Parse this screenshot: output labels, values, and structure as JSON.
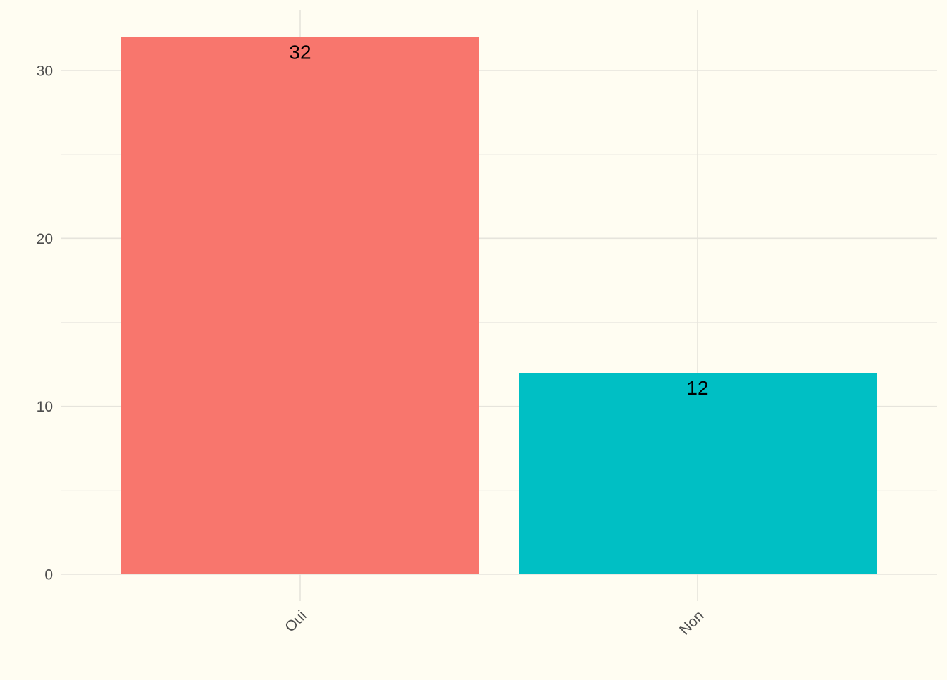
{
  "chart_data": {
    "type": "bar",
    "categories": [
      "Oui",
      "Non"
    ],
    "values": [
      32,
      12
    ],
    "data_labels": [
      "32",
      "12"
    ],
    "colors": [
      "#F8766D",
      "#00BFC4"
    ],
    "background": "#fffdf2",
    "title": "",
    "xlabel": "",
    "ylabel": "",
    "ylim": [
      0,
      33.6
    ],
    "y_ticks": [
      0,
      10,
      20,
      30
    ],
    "y_tick_labels": [
      "0",
      "10",
      "20",
      "30"
    ],
    "x_tick_rotation_deg": -45,
    "grid": true,
    "legend": "none"
  }
}
